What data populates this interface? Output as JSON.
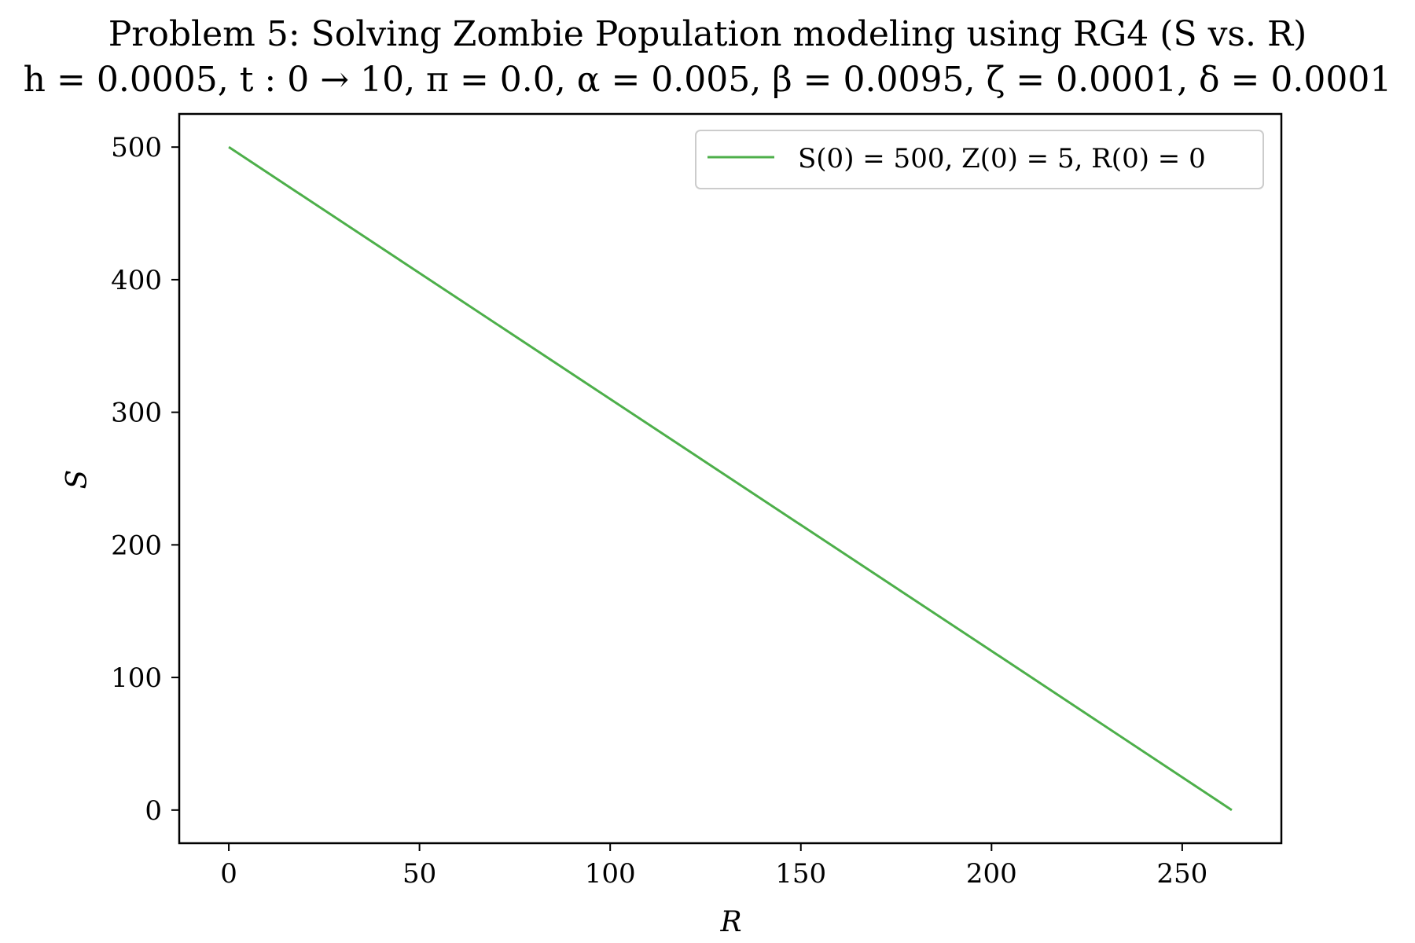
{
  "chart_data": {
    "type": "line",
    "title": "Problem 5: Solving Zombie Population modeling using RG4 (S vs. R)",
    "subtitle": "h = 0.0005, t : 0 → 10, π = 0.0, α = 0.005, β = 0.0095, ζ = 0.0001, δ = 0.0001",
    "xlabel": "R",
    "ylabel": "S",
    "xlim": [
      -13,
      276
    ],
    "ylim": [
      -25,
      525
    ],
    "xticks": [
      0,
      50,
      100,
      150,
      200,
      250
    ],
    "yticks": [
      0,
      100,
      200,
      300,
      400,
      500
    ],
    "xtick_labels": [
      "0",
      "50",
      "100",
      "150",
      "200",
      "250"
    ],
    "ytick_labels": [
      "0",
      "100",
      "200",
      "300",
      "400",
      "500"
    ],
    "grid": false,
    "legend_position": "top-right",
    "series": [
      {
        "name": "S(0) = 500, Z(0) = 5, R(0) = 0",
        "color": "#4daf4a",
        "x": [
          0,
          50,
          100,
          150,
          200,
          263
        ],
        "y": [
          500,
          405,
          310,
          215,
          120,
          0
        ]
      }
    ]
  }
}
